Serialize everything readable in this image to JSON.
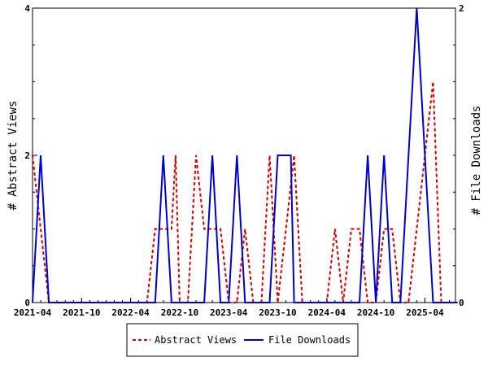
{
  "chart_data": {
    "type": "line",
    "xlabel": "",
    "ylabel_left": "# Abstract Views",
    "ylabel_right": "# File Downloads",
    "ylim_left": [
      0,
      4
    ],
    "ylim_right": [
      0,
      2
    ],
    "yticks_left": [
      0,
      2,
      4
    ],
    "yticks_right": [
      0,
      2
    ],
    "x_tick_labels": [
      "2021-04",
      "2021-10",
      "2022-04",
      "2022-10",
      "2023-04",
      "2023-10",
      "2024-04",
      "2024-10",
      "2025-04"
    ],
    "x_tick_index": [
      0,
      6,
      12,
      18,
      24,
      30,
      36,
      42,
      48
    ],
    "x_months": [
      "2021-04",
      "2021-05",
      "2021-06",
      "2021-07",
      "2021-08",
      "2021-09",
      "2021-10",
      "2021-11",
      "2021-12",
      "2022-01",
      "2022-02",
      "2022-03",
      "2022-04",
      "2022-05",
      "2022-06",
      "2022-07",
      "2022-08",
      "2022-09",
      "2022-10",
      "2022-11",
      "2022-12",
      "2023-01",
      "2023-02",
      "2023-03",
      "2023-04",
      "2023-05",
      "2023-06",
      "2023-07",
      "2023-08",
      "2023-09",
      "2023-10",
      "2023-11",
      "2023-12",
      "2024-01",
      "2024-02",
      "2024-03",
      "2024-04",
      "2024-05",
      "2024-06",
      "2024-07",
      "2024-08",
      "2024-09",
      "2024-10",
      "2024-11",
      "2024-12",
      "2025-01",
      "2025-02",
      "2025-03",
      "2025-04",
      "2025-05",
      "2025-06",
      "2025-07",
      "2025-08",
      "2025-09",
      "2025-10"
    ],
    "grid": false,
    "legend_position": "bottom-center",
    "series": [
      {
        "name": "Abstract Views",
        "axis": "left",
        "color": "#cc0000",
        "dash": "dashed",
        "x": [
          0,
          1,
          2,
          3,
          4,
          5,
          6,
          7,
          8,
          9,
          10,
          11,
          12,
          13,
          14,
          15,
          16,
          17,
          17.5,
          18,
          19,
          20,
          21,
          22,
          23,
          24,
          25,
          26,
          27,
          28,
          29,
          30,
          31,
          32,
          33,
          34,
          35,
          36,
          37,
          38,
          39,
          40,
          41,
          42,
          43,
          44,
          45,
          46,
          47,
          48,
          49,
          50,
          51,
          52
        ],
        "values": [
          2,
          1,
          0,
          0,
          0,
          0,
          0,
          0,
          0,
          0,
          0,
          0,
          0,
          0,
          0,
          1,
          1,
          1,
          2,
          0,
          0,
          2,
          1,
          1,
          1,
          0,
          0,
          1,
          0,
          0,
          2,
          0,
          1,
          2,
          0,
          0,
          0,
          0,
          1,
          0,
          1,
          1,
          0,
          0,
          1,
          1,
          0,
          0,
          1,
          2,
          3,
          0,
          0,
          0
        ]
      },
      {
        "name": "File Downloads",
        "axis": "right",
        "color": "#0000cc",
        "dash": "solid",
        "x": [
          0,
          1,
          2,
          3,
          4,
          5,
          6,
          7,
          8,
          9,
          10,
          11,
          12,
          13,
          14,
          15,
          16,
          17,
          18,
          19,
          20,
          21,
          22,
          23,
          24,
          25,
          26,
          27,
          28,
          29,
          30,
          31,
          31.6,
          32,
          33,
          34,
          35,
          36,
          37,
          38,
          39,
          40,
          41,
          42,
          43,
          44,
          45,
          46,
          47,
          48,
          49,
          50,
          51,
          52
        ],
        "values": [
          0,
          1,
          0,
          0,
          0,
          0,
          0,
          0,
          0,
          0,
          0,
          0,
          0,
          0,
          0,
          0,
          1,
          0,
          0,
          0,
          0,
          0,
          1,
          0,
          0,
          1,
          0,
          0,
          0,
          0,
          1,
          1,
          1,
          0,
          0,
          0,
          0,
          0,
          0,
          0,
          0,
          0,
          1,
          0,
          1,
          0,
          0,
          1,
          2,
          1,
          0,
          0,
          0,
          0
        ]
      }
    ]
  }
}
